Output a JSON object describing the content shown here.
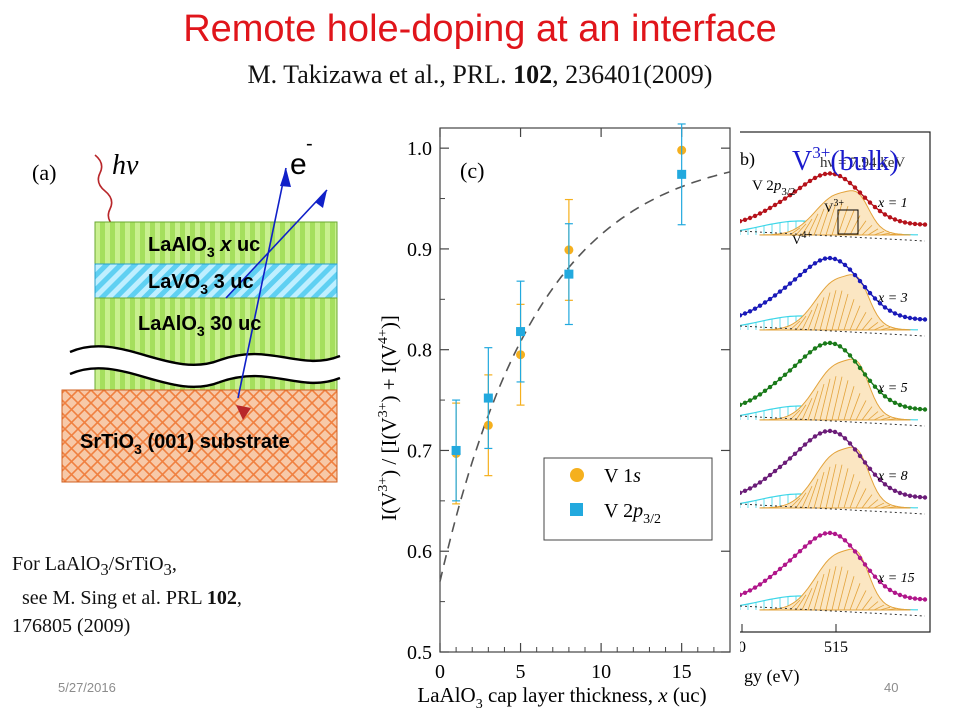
{
  "slide": {
    "title": "Remote hole-doping at an interface",
    "citation": {
      "authors": "M. Takizawa et al., PRL.",
      "volume": "102",
      "rest": ", 236401(2009)"
    },
    "note": {
      "line1_pre": "For LaAlO",
      "line1_sub1": "3",
      "line1_mid": "/SrTiO",
      "line1_sub2": "3",
      "line1_post": ",",
      "line2_pre": "see M. Sing et al. PRL",
      "line2_bold": "102",
      "line2_post": ",",
      "line3": "176805 (2009)"
    },
    "date": "5/27/2016",
    "page_number": "40"
  },
  "panel_a": {
    "label": "(a)",
    "photon": "hν",
    "electron": "e",
    "electron_sup": "-",
    "layers": [
      {
        "main": "LaAlO",
        "sub": "3",
        "rest": " ",
        "ital": "x",
        "tail": " uc"
      },
      {
        "main": "LaVO",
        "sub": "3",
        "rest": " 3 uc",
        "ital": "",
        "tail": ""
      },
      {
        "main": "LaAlO",
        "sub": "3",
        "rest": " 30 uc",
        "ital": "",
        "tail": ""
      }
    ],
    "substrate": {
      "main": "SrTiO",
      "sub": "3",
      "rest": " (001) substrate"
    }
  },
  "panel_b": {
    "label": "b)",
    "overlay": {
      "main": "V",
      "sup": "3+",
      "rest": "(bulk)"
    },
    "hv_label": "hν = 7.94 keV",
    "orbital": {
      "main": "V 2",
      "ital": "p",
      "sub": "3/2"
    },
    "v3_label": "V",
    "v3_sup": "3+",
    "v4_label": "V",
    "v4_sup": "4+",
    "x_labels": [
      "x = 1",
      "x = 3",
      "x = 5",
      "x = 8",
      "x = 15"
    ],
    "ticks": [
      "0",
      "515"
    ],
    "xlabel": "gy (eV)",
    "colors": [
      "#b5121b",
      "#1a1ab8",
      "#1a7a1a",
      "#6b1d78",
      "#b0168a"
    ]
  },
  "chart_data": {
    "type": "scatter",
    "panel_label": "(c)",
    "xlabel": "LaAlO3 cap layer thickness, x (uc)",
    "ylabel": "I(V3+) / [I(V3+) + I(V4+)]",
    "xlim": [
      0,
      18
    ],
    "ylim": [
      0.5,
      1.02
    ],
    "x_ticks": [
      0,
      5,
      10,
      15
    ],
    "y_ticks": [
      0.5,
      0.6,
      0.7,
      0.8,
      0.9,
      1.0
    ],
    "grid": false,
    "legend": "bottom-right",
    "series": [
      {
        "name": "V 1s",
        "marker": "circle",
        "color": "#f5b01e",
        "points": [
          {
            "x": 1,
            "y": 0.697,
            "err": 0.05
          },
          {
            "x": 3,
            "y": 0.725,
            "err": 0.05
          },
          {
            "x": 5,
            "y": 0.795,
            "err": 0.05
          },
          {
            "x": 8,
            "y": 0.899,
            "err": 0.05
          },
          {
            "x": 15,
            "y": 0.998,
            "err": 0.0
          }
        ]
      },
      {
        "name": "V 2p3/2",
        "marker": "square",
        "color": "#22a9de",
        "points": [
          {
            "x": 1,
            "y": 0.7,
            "err": 0.05
          },
          {
            "x": 3,
            "y": 0.752,
            "err": 0.05
          },
          {
            "x": 5,
            "y": 0.818,
            "err": 0.05
          },
          {
            "x": 8,
            "y": 0.875,
            "err": 0.05
          },
          {
            "x": 15,
            "y": 0.974,
            "err": 0.05
          }
        ]
      }
    ],
    "fit": {
      "style": "dashed",
      "color": "#555555"
    },
    "legend_entries": [
      {
        "main": "V 1",
        "ital": "s",
        "sub": ""
      },
      {
        "main": "V 2",
        "ital": "p",
        "sub": "3/2"
      }
    ]
  }
}
